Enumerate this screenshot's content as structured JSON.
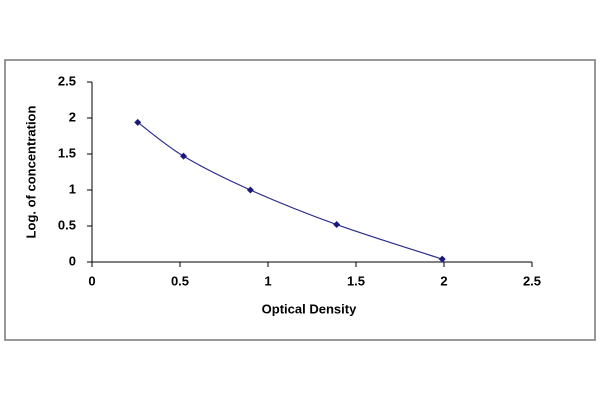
{
  "chart_data": {
    "type": "scatter",
    "x_label": "Optical Density",
    "y_label": "Log. of concentration",
    "x": [
      0.26,
      0.52,
      0.9,
      1.39,
      1.99
    ],
    "values": [
      1.94,
      1.47,
      1.0,
      0.52,
      0.04
    ],
    "color": "#1a1a7a",
    "line_color": "#2c2c8c",
    "smooth_line": true,
    "xlim": [
      0,
      2.5
    ],
    "xticks": [
      0,
      0.5,
      1,
      1.5,
      2,
      2.5
    ],
    "ylim": [
      0,
      2.5
    ],
    "yticks": [
      0,
      0.5,
      1,
      1.5,
      2,
      2.5
    ],
    "grid": false
  }
}
